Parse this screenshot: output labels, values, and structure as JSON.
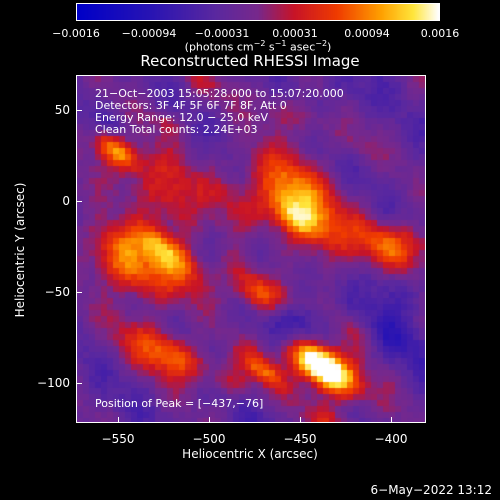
{
  "colorbar": {
    "ticks": [
      "−0.0016",
      "−0.00094",
      "−0.00031",
      "0.00031",
      "0.00094",
      "0.0016"
    ],
    "unit_prefix": "(photons cm",
    "unit_exp1": "−2",
    "unit_mid": " s",
    "unit_exp2": "−1",
    "unit_mid2": " asec",
    "unit_exp3": "−2",
    "unit_suffix": ")"
  },
  "title": "Reconstructed RHESSI Image",
  "annotations": {
    "time": "21−Oct−2003 15:05:28.000 to 15:07:20.000",
    "detectors": "Detectors: 3F 4F 5F 6F 7F 8F, Att 0",
    "energy": "Energy Range: 12.0 − 25.0 keV",
    "method": "Clean    Total counts: 2.24E+03",
    "peak": "Position of Peak = [−437,−76]"
  },
  "axes": {
    "x_label": "Heliocentric X (arcsec)",
    "y_label": "Heliocentric Y (arcsec)",
    "x_ticks": [
      "−550",
      "−500",
      "−450",
      "−400"
    ],
    "y_ticks": [
      "50",
      "0",
      "−50",
      "−100"
    ]
  },
  "datestamp": "6−May−2022 13:12"
}
